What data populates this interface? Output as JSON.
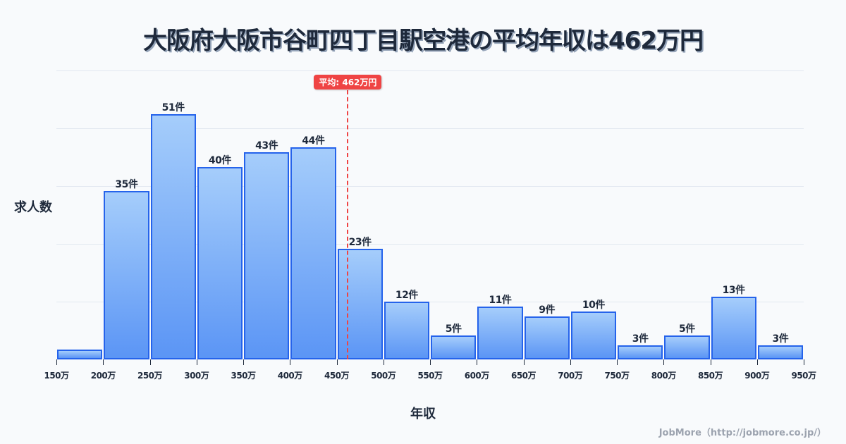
{
  "title": "大阪府大阪市谷町四丁目駅空港の平均年収は462万円",
  "ylabel": "求人数",
  "xlabel": "年収",
  "footer": "JobMore（http://jobmore.co.jp/）",
  "average": {
    "label": "平均: 462万円",
    "value": 462
  },
  "colors": {
    "bar_border": "#2563eb",
    "bar_top": "#a5cdfb",
    "bar_bottom": "#5b95f5",
    "average": "#ef4444",
    "text": "#1e293b",
    "grid": "#e2e8f0",
    "background": "#f8fafc"
  },
  "chart_data": {
    "type": "bar",
    "title": "大阪府大阪市谷町四丁目駅空港の平均年収は462万円",
    "xlabel": "年収",
    "ylabel": "求人数",
    "bin_edges": [
      150,
      200,
      250,
      300,
      350,
      400,
      450,
      500,
      550,
      600,
      650,
      700,
      750,
      800,
      850,
      900,
      950
    ],
    "tick_labels": [
      "150万",
      "200万",
      "250万",
      "300万",
      "350万",
      "400万",
      "450万",
      "500万",
      "550万",
      "600万",
      "650万",
      "700万",
      "750万",
      "800万",
      "850万",
      "900万",
      "950万"
    ],
    "categories": [
      "150-200万",
      "200-250万",
      "250-300万",
      "300-350万",
      "350-400万",
      "400-450万",
      "450-500万",
      "500-550万",
      "550-600万",
      "600-650万",
      "650-700万",
      "700-750万",
      "750-800万",
      "800-850万",
      "850-900万",
      "900-950万"
    ],
    "values": [
      2,
      35,
      51,
      40,
      43,
      44,
      23,
      12,
      5,
      11,
      9,
      10,
      3,
      5,
      13,
      3
    ],
    "labels": [
      "",
      "35件",
      "51件",
      "40件",
      "43件",
      "44件",
      "23件",
      "12件",
      "5件",
      "11件",
      "9件",
      "10件",
      "3件",
      "5件",
      "13件",
      "3件"
    ],
    "ylim": [
      0,
      60
    ],
    "grid_y": [
      12,
      24,
      36,
      48,
      60
    ],
    "annotations": [
      {
        "type": "vline",
        "x": 462,
        "label": "平均: 462万円"
      }
    ],
    "grid": true,
    "legend": null
  }
}
